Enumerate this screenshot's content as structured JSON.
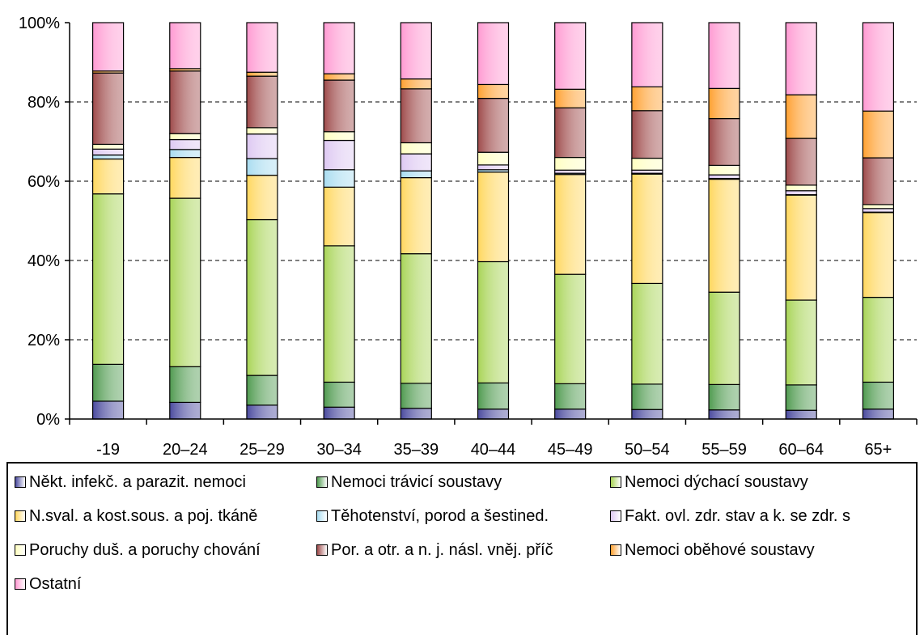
{
  "chart_data": {
    "type": "bar",
    "stacked": true,
    "normalized": true,
    "categories": [
      "-19",
      "20–24",
      "25–29",
      "30–34",
      "35–39",
      "40–44",
      "45–49",
      "50–54",
      "55–59",
      "60–64",
      "65+"
    ],
    "y_ticks": [
      "0%",
      "20%",
      "40%",
      "60%",
      "80%",
      "100%"
    ],
    "ylim": [
      0,
      100
    ],
    "grid": "dashed horizontal",
    "legend_position": "bottom",
    "series": [
      {
        "name": "Někt. infekč. a parazit. nemoci",
        "color": "#4a4a9e",
        "values": [
          4.5,
          4.2,
          3.5,
          3.0,
          2.7,
          2.5,
          2.5,
          2.4,
          2.3,
          2.2,
          2.5
        ]
      },
      {
        "name": "Nemoci trávicí soustavy",
        "color": "#4f9a4f",
        "values": [
          9.3,
          9.0,
          7.5,
          6.3,
          6.3,
          6.6,
          6.4,
          6.4,
          6.4,
          6.4,
          6.8
        ]
      },
      {
        "name": "Nemoci dýchací soustavy",
        "color": "#a8d456",
        "values": [
          43.0,
          42.5,
          39.3,
          34.4,
          32.7,
          30.6,
          27.6,
          25.4,
          23.3,
          21.4,
          21.4
        ]
      },
      {
        "name": "N.sval. a kost.sous. a poj. tkáně",
        "color": "#ffd75e",
        "values": [
          8.8,
          10.3,
          11.2,
          14.8,
          19.2,
          22.6,
          25.2,
          27.6,
          28.5,
          26.5,
          21.4
        ]
      },
      {
        "name": "Těhotenství, porod a šestined.",
        "color": "#a8dcf0",
        "values": [
          1.0,
          2.0,
          4.2,
          4.4,
          1.7,
          0.6,
          0.3,
          0.2,
          0.2,
          0.1,
          0.1
        ]
      },
      {
        "name": "Fakt. ovl. zdr. stav a k. se zdr. s",
        "color": "#ddc8f2",
        "values": [
          1.5,
          2.5,
          6.2,
          7.4,
          4.3,
          1.2,
          0.8,
          0.8,
          0.9,
          1.0,
          0.9
        ]
      },
      {
        "name": "Poruchy duš. a poruchy chování",
        "color": "#ffffc0",
        "values": [
          1.2,
          1.5,
          1.6,
          2.2,
          2.8,
          3.2,
          3.2,
          3.0,
          2.4,
          1.4,
          1.0
        ]
      },
      {
        "name": "Por. a otr. a n. j. násl. vněj. příč",
        "color": "#9e4a4a",
        "values": [
          18.0,
          15.8,
          13.0,
          13.0,
          13.6,
          13.6,
          12.5,
          12.0,
          11.8,
          11.8,
          11.8
        ]
      },
      {
        "name": "Nemoci oběhové soustavy",
        "color": "#ffa030",
        "values": [
          0.5,
          0.6,
          1.0,
          1.6,
          2.5,
          3.5,
          4.7,
          6.0,
          7.6,
          11.0,
          11.8
        ]
      },
      {
        "name": "Ostatní",
        "color": "#ff9ad2",
        "values": [
          12.2,
          11.6,
          12.5,
          12.9,
          14.2,
          15.6,
          16.8,
          16.2,
          16.6,
          18.2,
          22.3
        ]
      }
    ]
  }
}
